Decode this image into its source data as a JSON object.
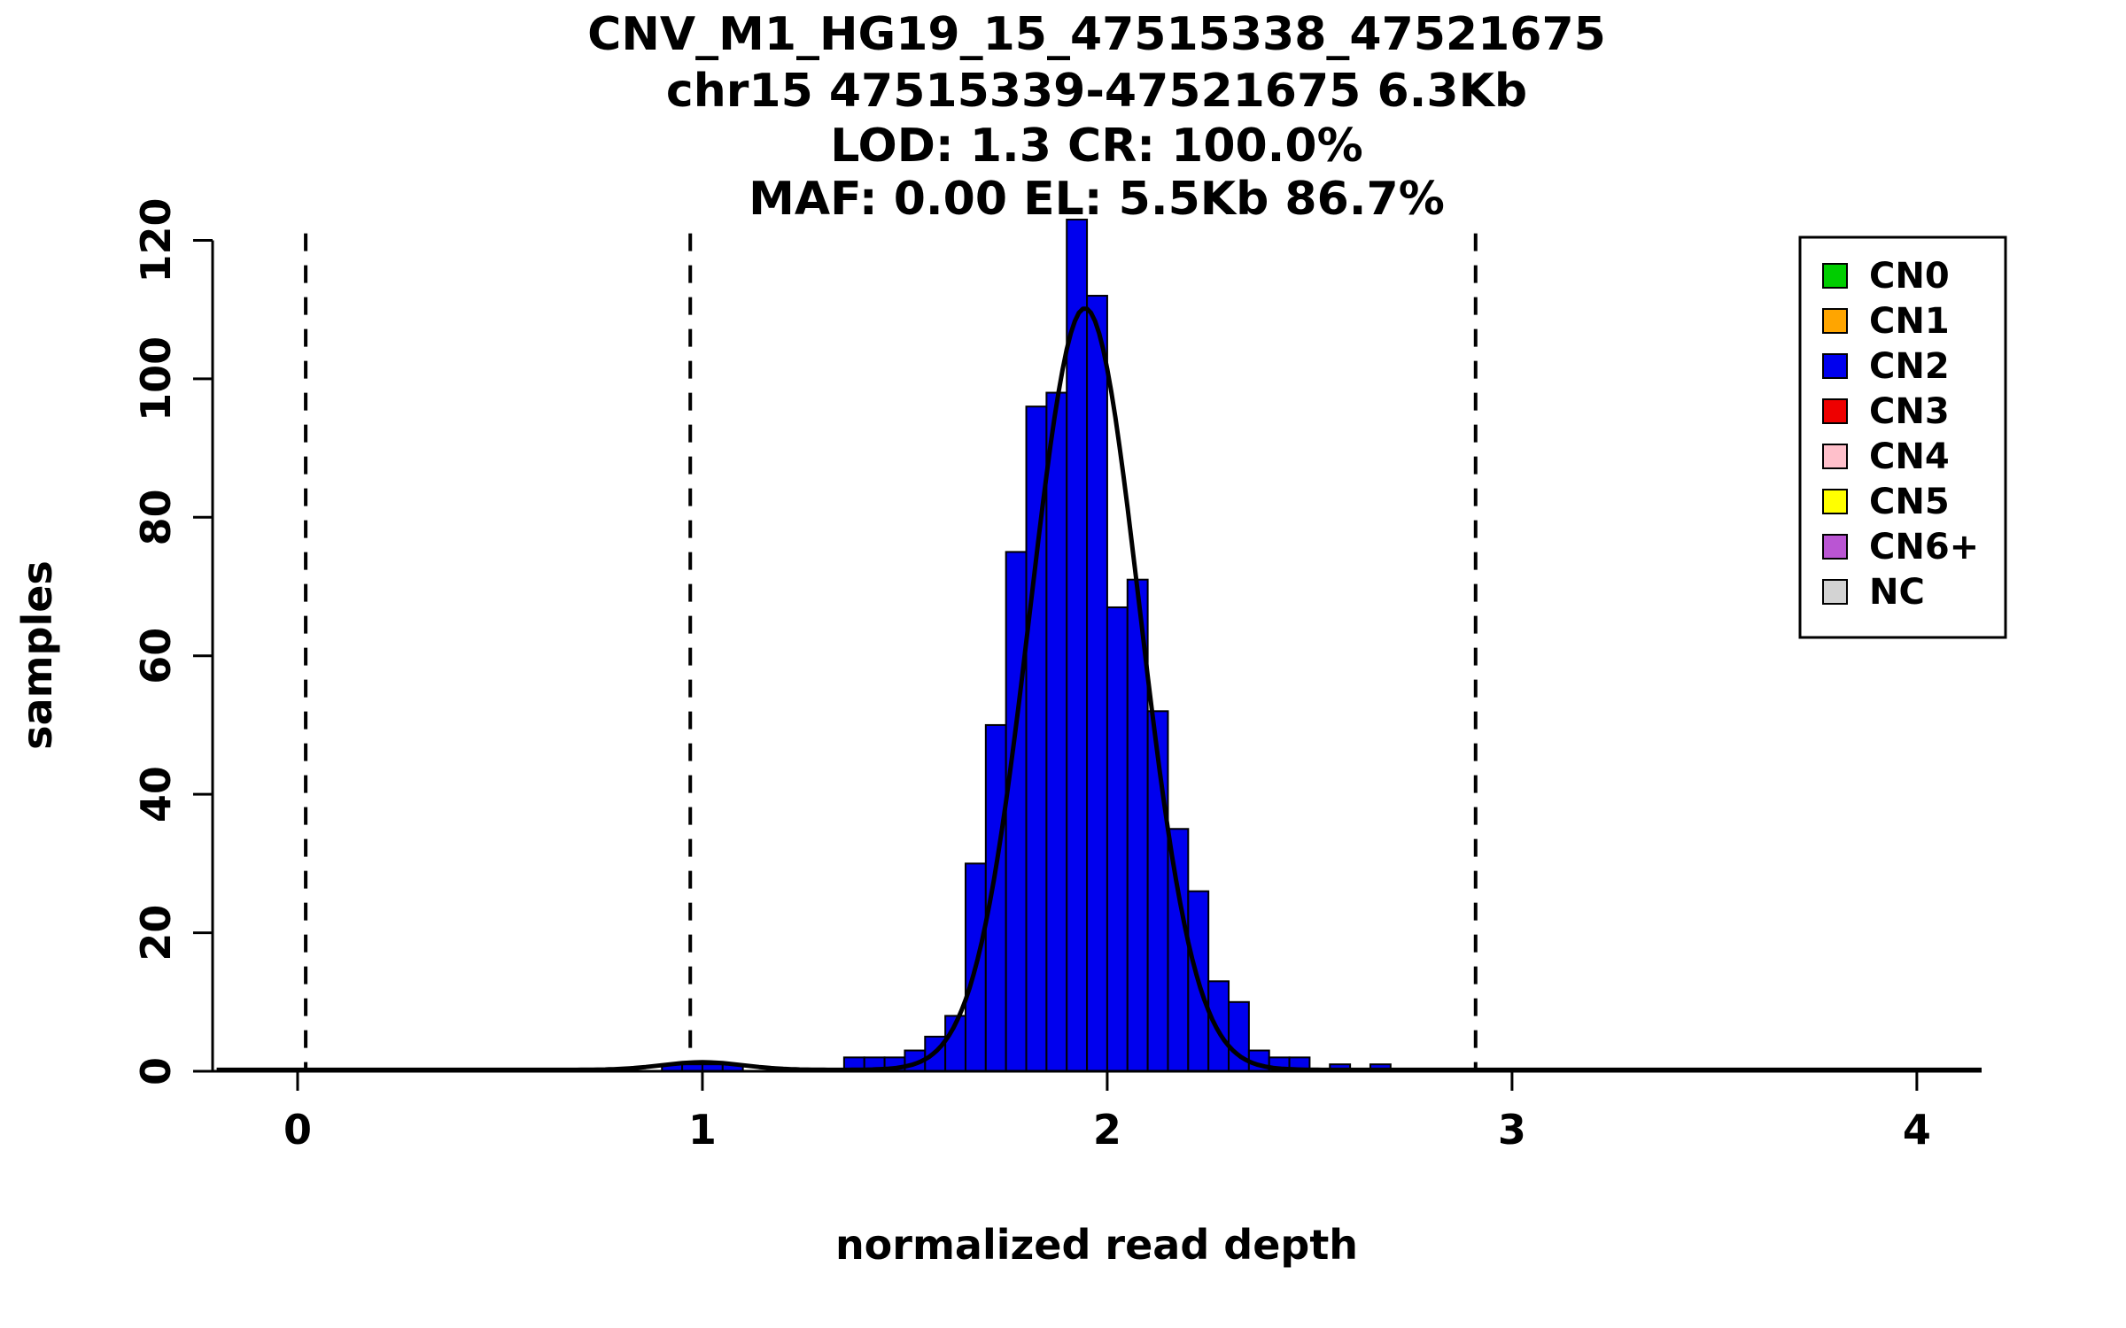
{
  "chart_data": {
    "type": "bar",
    "title_lines": [
      "CNV_M1_HG19_15_47515338_47521675",
      "chr15 47515339-47521675 6.3Kb",
      "LOD: 1.3 CR: 100.0%",
      "MAF: 0.00 EL: 5.5Kb 86.7%"
    ],
    "xlabel": "normalized read depth",
    "ylabel": "samples",
    "xticks": [
      0,
      1,
      2,
      3,
      4
    ],
    "yticks": [
      0,
      20,
      40,
      60,
      80,
      100,
      120
    ],
    "xlim": [
      -0.21,
      4.16
    ],
    "ylim": [
      0,
      123
    ],
    "grid": false,
    "legend_position": "top-right",
    "bin_width": 0.05,
    "bar_color": "#0000EE",
    "bar_edge_color": "#000000",
    "bars": [
      {
        "x": 0.9,
        "h": 1
      },
      {
        "x": 0.95,
        "h": 1
      },
      {
        "x": 1.0,
        "h": 1
      },
      {
        "x": 1.05,
        "h": 1
      },
      {
        "x": 1.35,
        "h": 2
      },
      {
        "x": 1.4,
        "h": 2
      },
      {
        "x": 1.45,
        "h": 2
      },
      {
        "x": 1.5,
        "h": 3
      },
      {
        "x": 1.55,
        "h": 5
      },
      {
        "x": 1.6,
        "h": 8
      },
      {
        "x": 1.65,
        "h": 30
      },
      {
        "x": 1.7,
        "h": 50
      },
      {
        "x": 1.75,
        "h": 75
      },
      {
        "x": 1.8,
        "h": 96
      },
      {
        "x": 1.85,
        "h": 98
      },
      {
        "x": 1.9,
        "h": 123
      },
      {
        "x": 1.95,
        "h": 112
      },
      {
        "x": 2.0,
        "h": 67
      },
      {
        "x": 2.05,
        "h": 71
      },
      {
        "x": 2.1,
        "h": 52
      },
      {
        "x": 2.15,
        "h": 35
      },
      {
        "x": 2.2,
        "h": 26
      },
      {
        "x": 2.25,
        "h": 13
      },
      {
        "x": 2.3,
        "h": 10
      },
      {
        "x": 2.35,
        "h": 3
      },
      {
        "x": 2.4,
        "h": 2
      },
      {
        "x": 2.45,
        "h": 2
      },
      {
        "x": 2.55,
        "h": 1
      },
      {
        "x": 2.65,
        "h": 1
      }
    ],
    "fit_curve": {
      "color": "#000000",
      "baseline": 0.2,
      "components": [
        {
          "amp": 110,
          "mean": 1.945,
          "sd": 0.135
        },
        {
          "amp": 1.1,
          "mean": 1.0,
          "sd": 0.1
        }
      ]
    },
    "dashed_lines": [
      0.02,
      0.97,
      1.94,
      2.91
    ],
    "legend": {
      "items": [
        {
          "label": "CN0",
          "color": "#00CD00"
        },
        {
          "label": "CN1",
          "color": "#FFA500"
        },
        {
          "label": "CN2",
          "color": "#0000EE"
        },
        {
          "label": "CN3",
          "color": "#EE0000"
        },
        {
          "label": "CN4",
          "color": "#FFC0CB"
        },
        {
          "label": "CN5",
          "color": "#FFFF00"
        },
        {
          "label": "CN6+",
          "color": "#BA55D3"
        },
        {
          "label": "NC",
          "color": "#D3D3D3"
        }
      ]
    }
  }
}
